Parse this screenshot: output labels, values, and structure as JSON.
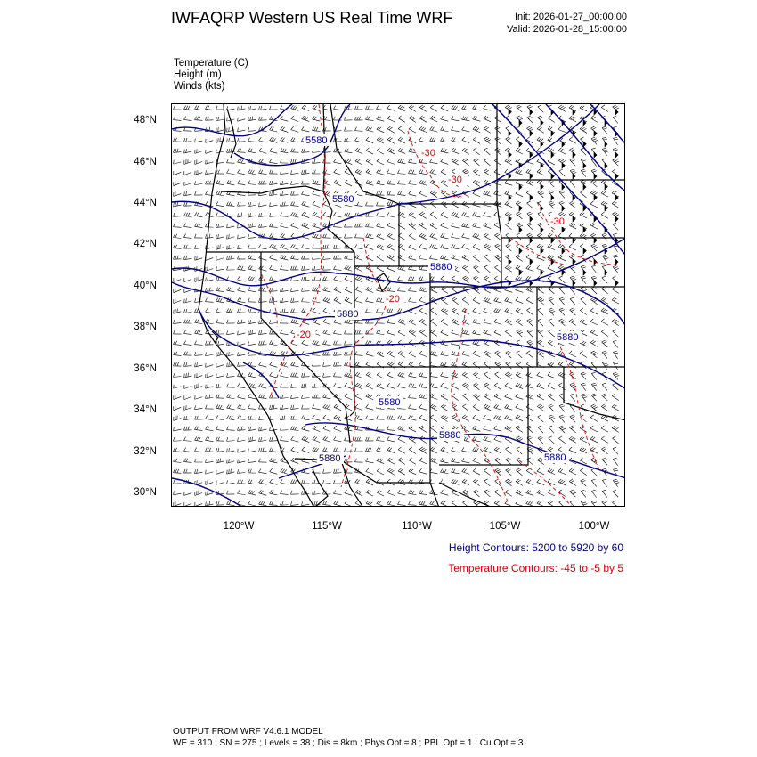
{
  "header": {
    "title": "IWFAQRP Western US Real Time WRF",
    "init": "Init: 2026-01-27_00:00:00",
    "valid": "Valid: 2026-01-28_15:00:00"
  },
  "variables": [
    "Temperature   (C)",
    "Height   (m)",
    "Winds   (kts)"
  ],
  "axes": {
    "lat_labels": [
      "48°N",
      "46°N",
      "44°N",
      "42°N",
      "40°N",
      "38°N",
      "36°N",
      "34°N",
      "32°N",
      "30°N"
    ],
    "lon_labels": [
      "120°W",
      "115°W",
      "110°W",
      "105°W",
      "100°W"
    ]
  },
  "contour_labels": {
    "height": [
      "5580",
      "5580",
      "5580",
      "5880",
      "5880",
      "5880",
      "5880",
      "5880",
      "5880"
    ],
    "temperature": [
      "-30",
      "-30",
      "-30",
      "-20",
      "-20"
    ]
  },
  "legend": {
    "height": "Height Contours: 5200 to 5920 by 60",
    "temperature": "Temperature Contours: -45 to -5 by 5"
  },
  "colors": {
    "height": "#00008b",
    "temperature": "#e00000",
    "boundaries": "#000000"
  },
  "footer": {
    "line1": "OUTPUT FROM WRF V4.6.1 MODEL",
    "line2": "WE = 310 ; SN = 275 ; Levels = 38 ; Dis = 8km ; Phys Opt = 8 ; PBL Opt = 1 ; Cu Opt = 3"
  }
}
